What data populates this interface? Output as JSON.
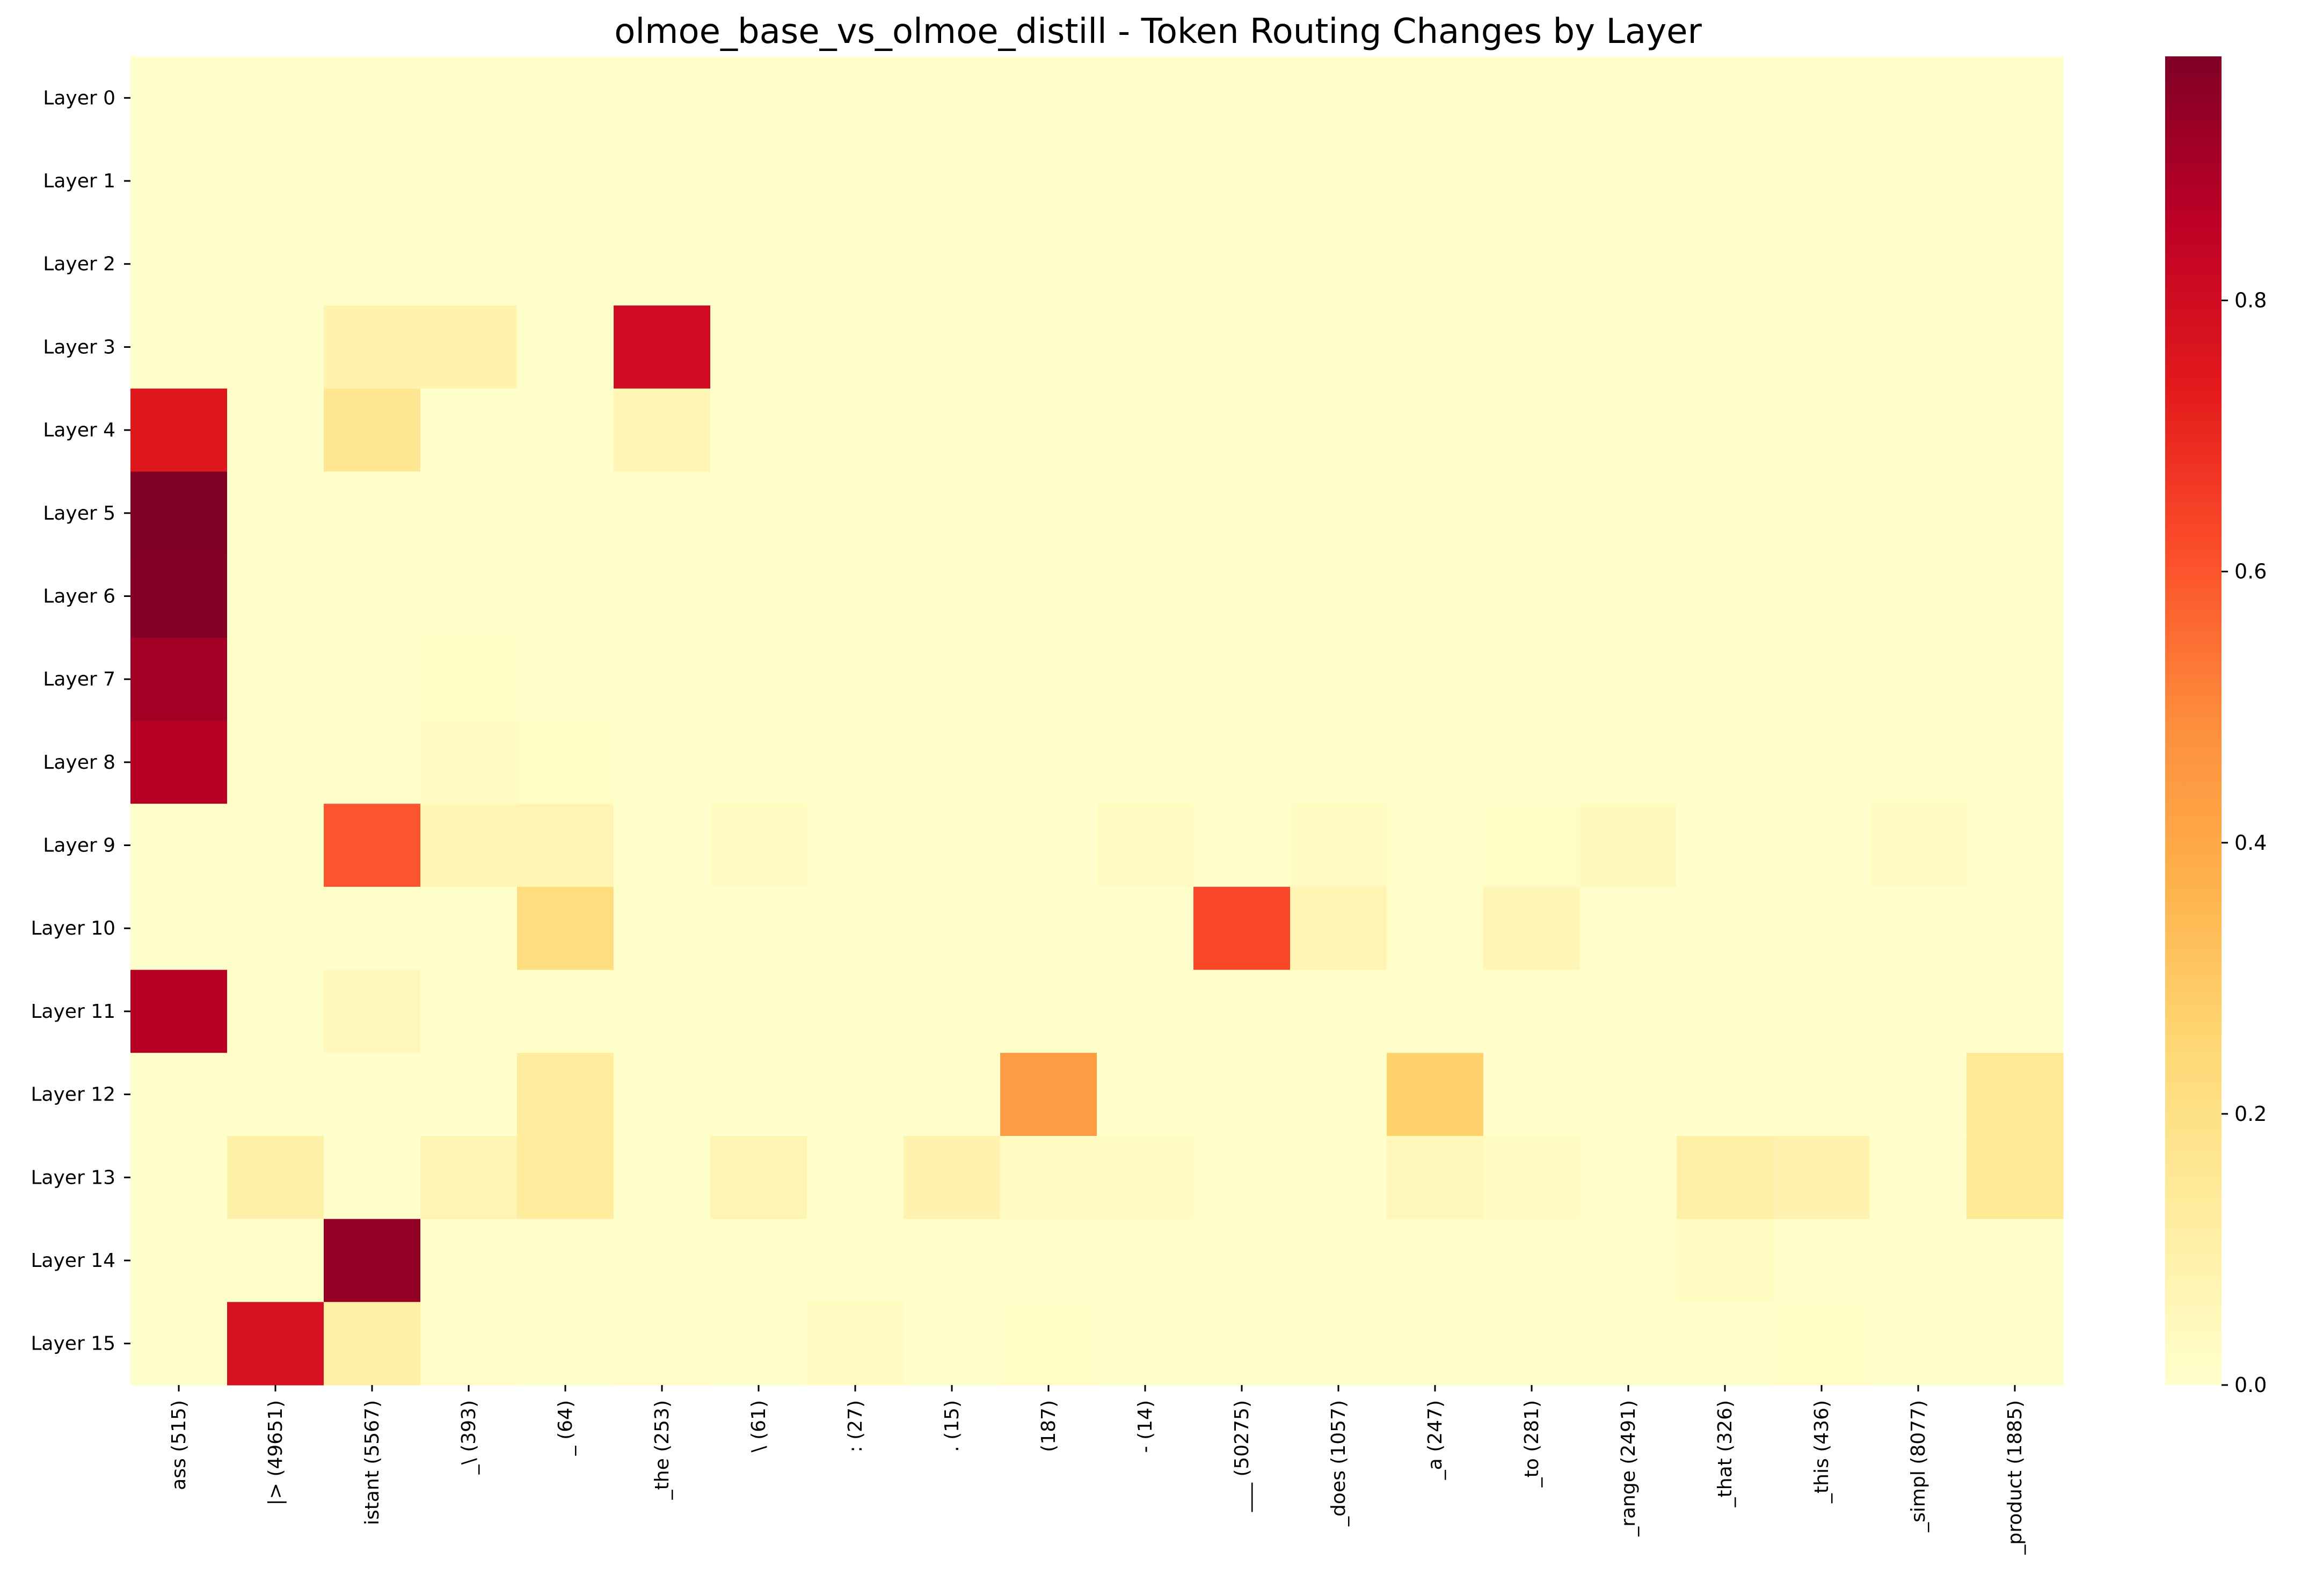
{
  "chart_data": {
    "type": "heatmap",
    "title": "olmoe_base_vs_olmoe_distill - Token Routing Changes by Layer",
    "xlabel": "",
    "ylabel": "",
    "x_categories": [
      "ass (515)",
      "|> (49651)",
      "istant (5567)",
      "_\\ (393)",
      "_ (64)",
      "_the (253)",
      "\\ (61)",
      ": (27)",
      ". (15)",
      " (187)",
      "- (14)",
      "___ (50275)",
      "_does (1057)",
      "_a (247)",
      "_to (281)",
      "_range (2491)",
      "_that (326)",
      "_this (436)",
      "_simpl (8077)",
      "_product (1885)"
    ],
    "y_categories": [
      "Layer 0",
      "Layer 1",
      "Layer 2",
      "Layer 3",
      "Layer 4",
      "Layer 5",
      "Layer 6",
      "Layer 7",
      "Layer 8",
      "Layer 9",
      "Layer 10",
      "Layer 11",
      "Layer 12",
      "Layer 13",
      "Layer 14",
      "Layer 15"
    ],
    "values": [
      [
        0,
        0,
        0,
        0,
        0,
        0,
        0,
        0,
        0,
        0,
        0,
        0,
        0,
        0,
        0,
        0,
        0,
        0,
        0,
        0
      ],
      [
        0,
        0,
        0,
        0,
        0,
        0,
        0,
        0,
        0,
        0,
        0,
        0,
        0,
        0,
        0,
        0,
        0,
        0,
        0,
        0
      ],
      [
        0,
        0,
        0,
        0,
        0,
        0,
        0,
        0,
        0,
        0,
        0,
        0,
        0,
        0,
        0,
        0,
        0,
        0,
        0,
        0
      ],
      [
        0,
        0,
        0.08,
        0.08,
        0,
        0.8,
        0,
        0,
        0,
        0,
        0,
        0,
        0,
        0,
        0,
        0,
        0,
        0,
        0,
        0
      ],
      [
        0.75,
        0,
        0.16,
        0,
        0,
        0.06,
        0,
        0,
        0,
        0,
        0,
        0,
        0,
        0,
        0,
        0,
        0,
        0,
        0,
        0
      ],
      [
        0.98,
        0,
        0,
        0.01,
        0,
        0,
        0,
        0,
        0,
        0,
        0,
        0,
        0,
        0,
        0,
        0,
        0,
        0,
        0,
        0
      ],
      [
        0.97,
        0,
        0,
        0.01,
        0,
        0,
        0,
        0,
        0,
        0,
        0,
        0,
        0,
        0,
        0,
        0,
        0,
        0,
        0,
        0
      ],
      [
        0.91,
        0,
        0,
        0.02,
        0,
        0,
        0,
        0,
        0,
        0,
        0,
        0,
        0,
        0.01,
        0,
        0,
        0,
        0,
        0,
        0
      ],
      [
        0.87,
        0,
        0,
        0.03,
        0.02,
        0,
        0,
        0,
        0,
        0,
        0,
        0.01,
        0,
        0.01,
        0,
        0.01,
        0.01,
        0,
        0.01,
        0.01
      ],
      [
        0,
        0,
        0.6,
        0.06,
        0.07,
        0,
        0.03,
        0,
        0.01,
        0,
        0.03,
        0,
        0.03,
        0.01,
        0.02,
        0.04,
        0,
        0,
        0.03,
        0
      ],
      [
        0,
        0,
        0,
        0,
        0.22,
        0,
        0,
        0,
        0.01,
        0,
        0,
        0.63,
        0.07,
        0.01,
        0.06,
        0,
        0,
        0,
        0,
        0
      ],
      [
        0.87,
        0,
        0.05,
        0,
        0.01,
        0,
        0,
        0,
        0.01,
        0,
        0,
        0,
        0,
        0,
        0,
        0,
        0,
        0,
        0,
        0
      ],
      [
        0,
        0,
        0,
        0,
        0.13,
        0,
        0,
        0,
        0,
        0.44,
        0,
        0,
        0,
        0.27,
        0,
        0,
        0,
        0,
        0,
        0.15
      ],
      [
        0,
        0.1,
        0,
        0.07,
        0.13,
        0,
        0.07,
        0,
        0.08,
        0.03,
        0.03,
        0,
        0,
        0.05,
        0.03,
        0,
        0.11,
        0.08,
        0,
        0.15
      ],
      [
        0,
        0,
        0.94,
        0,
        0,
        0.01,
        0,
        0,
        0,
        0,
        0,
        0,
        0,
        0.01,
        0.01,
        0.01,
        0.03,
        0,
        0,
        0
      ],
      [
        0,
        0.78,
        0.1,
        0.01,
        0,
        0.01,
        0,
        0.03,
        0,
        0.02,
        0,
        0,
        0,
        0,
        0,
        0,
        0,
        0.02,
        0,
        0
      ]
    ],
    "zlim": [
      0,
      0.98
    ],
    "colormap": "YlOrRd",
    "colorbar_ticks": [
      "0.0",
      "0.2",
      "0.4",
      "0.6",
      "0.8"
    ],
    "colorbar_tick_values": [
      0,
      0.2,
      0.4,
      0.6,
      0.8
    ],
    "grid": false,
    "colors": {
      "background": "#ffffff",
      "text": "#000000"
    }
  }
}
